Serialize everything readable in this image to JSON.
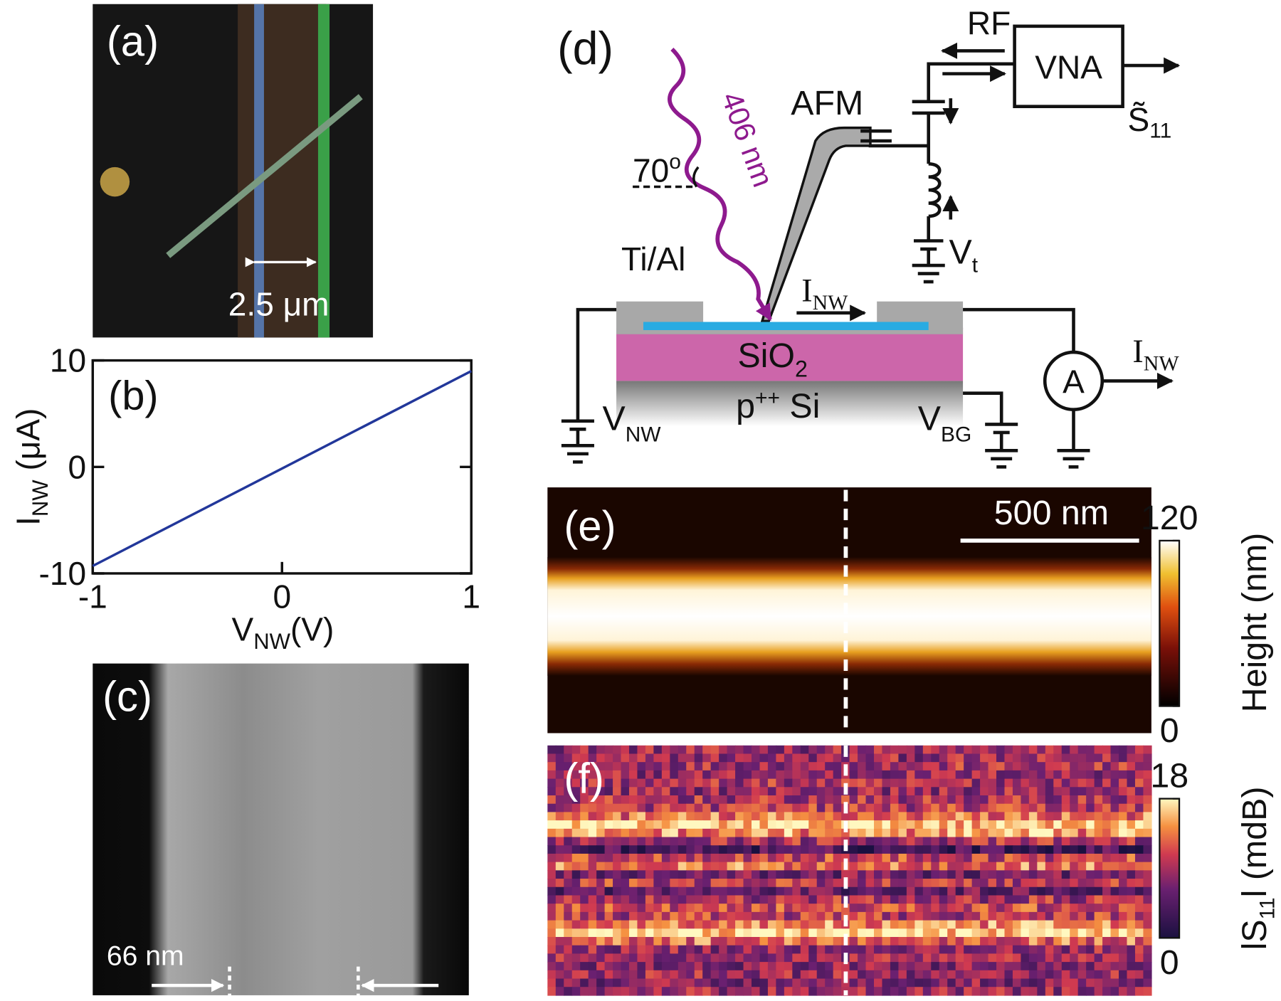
{
  "panel_a": {
    "label": "(a)",
    "scale_bar": "2.5 μm"
  },
  "chart_data": {
    "type": "line",
    "panel_label": "(b)",
    "x_label": "V",
    "x_label_sub": "NW",
    "x_label_unit": "(V)",
    "y_label": "I",
    "y_label_sub": "NW",
    "y_label_unit": " (μA)",
    "x": [
      -1,
      1
    ],
    "series": [
      {
        "color": "#22379a",
        "values": [
          -9.3,
          9.0
        ]
      }
    ],
    "xlim": [
      -1,
      1
    ],
    "ylim": [
      -10,
      10
    ],
    "xticks": [
      -1,
      0,
      1
    ],
    "yticks": [
      -10,
      0,
      10
    ]
  },
  "panel_c": {
    "label": "(c)",
    "width": "66 nm"
  },
  "panel_d": {
    "label": "(d)",
    "rf": "RF",
    "vna": "VNA",
    "s11": "S̃",
    "s11_sub": "11",
    "afm": "AFM",
    "laser": "406 nm",
    "angle": "70",
    "angle_sup": "o",
    "contact": "Ti/Al",
    "current": "I",
    "current_sub": "NW",
    "oxide": "SiO",
    "oxide_sub": "2",
    "substrate": "p",
    "substrate_sup": "++",
    "substrate_rest": " Si",
    "v_nw": "V",
    "v_nw_sub": "NW",
    "v_t": "V",
    "v_t_sub": "t",
    "v_bg": "V",
    "v_bg_sub": "BG",
    "ammeter": "A",
    "out_current": "I",
    "out_current_sub": "NW"
  },
  "panel_e": {
    "label": "(e)",
    "scale_bar": "500 nm",
    "colorbar": {
      "title": "Height (nm)",
      "ticks": [
        0,
        120
      ]
    }
  },
  "panel_f": {
    "label": "(f)",
    "colorbar": {
      "title_pre": "lS",
      "title_sub": "11",
      "title_post": "l (mdB)",
      "ticks": [
        0,
        18
      ]
    }
  }
}
